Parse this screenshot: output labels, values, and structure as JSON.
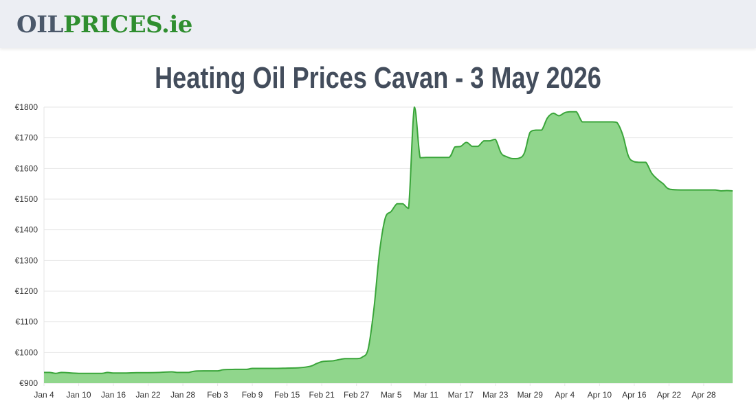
{
  "header": {
    "logo_part1": "OIL",
    "logo_part2": "PRICES.ie"
  },
  "page_title": "Heating Oil Prices Cavan - 3 May 2026",
  "colors": {
    "header_bg": "#eceef3",
    "logo_dark": "#4b586a",
    "logo_green": "#2f8e2f",
    "line": "#3aa53a",
    "fill": "#90d68c",
    "grid": "#e6e6e6",
    "title": "#434d5c"
  },
  "chart_data": {
    "type": "area",
    "title": "",
    "xlabel": "",
    "ylabel": "",
    "ylim": [
      900,
      1800
    ],
    "y_ticks": [
      900,
      1000,
      1100,
      1200,
      1300,
      1400,
      1500,
      1600,
      1700,
      1800
    ],
    "y_tick_labels": [
      "€900",
      "€1000",
      "€1100",
      "€1200",
      "€1300",
      "€1400",
      "€1500",
      "€1600",
      "€1700",
      "€1800"
    ],
    "x_tick_labels": [
      "Jan 4",
      "Jan 10",
      "Jan 16",
      "Jan 22",
      "Jan 28",
      "Feb 3",
      "Feb 9",
      "Feb 15",
      "Feb 21",
      "Feb 27",
      "Mar 5",
      "Mar 11",
      "Mar 17",
      "Mar 23",
      "Mar 29",
      "Apr 4",
      "Apr 10",
      "Apr 16",
      "Apr 22",
      "Apr 28"
    ],
    "grid": true,
    "legend": "none",
    "series": [
      {
        "x": [
          "2026-01-04",
          "2026-01-05",
          "2026-01-06",
          "2026-01-07",
          "2026-01-08",
          "2026-01-10",
          "2026-01-12",
          "2026-01-14",
          "2026-01-15",
          "2026-01-16",
          "2026-01-18",
          "2026-01-20",
          "2026-01-22",
          "2026-01-24",
          "2026-01-26",
          "2026-01-27",
          "2026-01-28",
          "2026-01-29",
          "2026-01-30",
          "2026-02-01",
          "2026-02-03",
          "2026-02-04",
          "2026-02-06",
          "2026-02-08",
          "2026-02-09",
          "2026-02-11",
          "2026-02-13",
          "2026-02-15",
          "2026-02-17",
          "2026-02-19",
          "2026-02-20",
          "2026-02-21",
          "2026-02-22",
          "2026-02-23",
          "2026-02-25",
          "2026-02-27",
          "2026-02-28",
          "2026-03-01",
          "2026-03-02",
          "2026-03-03",
          "2026-03-04",
          "2026-03-05",
          "2026-03-06",
          "2026-03-07",
          "2026-03-08",
          "2026-03-09",
          "2026-03-10",
          "2026-03-11",
          "2026-03-12",
          "2026-03-13",
          "2026-03-15",
          "2026-03-16",
          "2026-03-17",
          "2026-03-18",
          "2026-03-19",
          "2026-03-20",
          "2026-03-21",
          "2026-03-22",
          "2026-03-23",
          "2026-03-24",
          "2026-03-25",
          "2026-03-26",
          "2026-03-27",
          "2026-03-28",
          "2026-03-29",
          "2026-03-30",
          "2026-03-31",
          "2026-04-01",
          "2026-04-02",
          "2026-04-03",
          "2026-04-04",
          "2026-04-05",
          "2026-04-06",
          "2026-04-07",
          "2026-04-08",
          "2026-04-09",
          "2026-04-10",
          "2026-04-11",
          "2026-04-12",
          "2026-04-13",
          "2026-04-14",
          "2026-04-15",
          "2026-04-16",
          "2026-04-17",
          "2026-04-18",
          "2026-04-19",
          "2026-04-20",
          "2026-04-21",
          "2026-04-22",
          "2026-04-24",
          "2026-04-26",
          "2026-04-27",
          "2026-04-28",
          "2026-04-29",
          "2026-04-30",
          "2026-05-01",
          "2026-05-02",
          "2026-05-03"
        ],
        "values": [
          935,
          935,
          932,
          935,
          934,
          932,
          932,
          932,
          935,
          933,
          933,
          934,
          934,
          935,
          937,
          935,
          935,
          935,
          939,
          940,
          940,
          944,
          945,
          945,
          948,
          948,
          948,
          949,
          950,
          955,
          963,
          970,
          972,
          973,
          980,
          980,
          985,
          1010,
          1140,
          1330,
          1440,
          1460,
          1485,
          1485,
          1470,
          1800,
          1635,
          1636,
          1636,
          1636,
          1636,
          1670,
          1672,
          1685,
          1672,
          1672,
          1690,
          1690,
          1695,
          1650,
          1638,
          1632,
          1633,
          1650,
          1718,
          1725,
          1725,
          1765,
          1780,
          1772,
          1782,
          1785,
          1785,
          1752,
          1752,
          1752,
          1752,
          1752,
          1752,
          1750,
          1710,
          1640,
          1622,
          1620,
          1620,
          1585,
          1565,
          1550,
          1533,
          1530,
          1530,
          1530,
          1530,
          1530,
          1530,
          1527,
          1528,
          1527
        ]
      }
    ]
  }
}
